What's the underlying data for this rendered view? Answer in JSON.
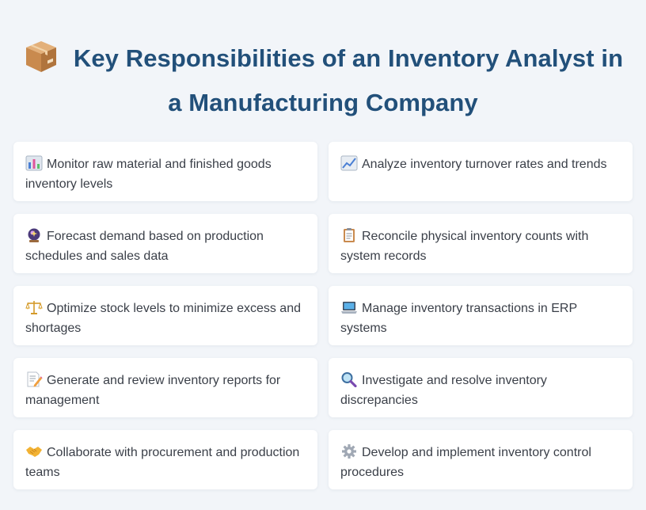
{
  "header": {
    "title": "Key Responsibilities of an Inventory Analyst in a Manufacturing Company",
    "icon": "package-box-icon"
  },
  "responsibilities": [
    {
      "text": "Monitor raw material and finished goods inventory levels",
      "icon": "bar-chart-icon"
    },
    {
      "text": "Analyze inventory turnover rates and trends",
      "icon": "trending-up-chart-icon"
    },
    {
      "text": "Forecast demand based on production schedules and sales data",
      "icon": "crystal-ball-icon"
    },
    {
      "text": "Reconcile physical inventory counts with system records",
      "icon": "clipboard-icon"
    },
    {
      "text": "Optimize stock levels to minimize excess and shortages",
      "icon": "balance-scale-icon"
    },
    {
      "text": "Manage inventory transactions in ERP systems",
      "icon": "laptop-icon"
    },
    {
      "text": "Generate and review inventory reports for management",
      "icon": "memo-icon"
    },
    {
      "text": "Investigate and resolve inventory discrepancies",
      "icon": "magnifying-glass-icon"
    },
    {
      "text": "Collaborate with procurement and production teams",
      "icon": "handshake-icon"
    },
    {
      "text": "Develop and implement inventory control procedures",
      "icon": "gear-icon"
    }
  ],
  "colors": {
    "title": "#22507a",
    "background": "#f2f5f9",
    "card": "#ffffff",
    "text": "#3a3f48"
  }
}
